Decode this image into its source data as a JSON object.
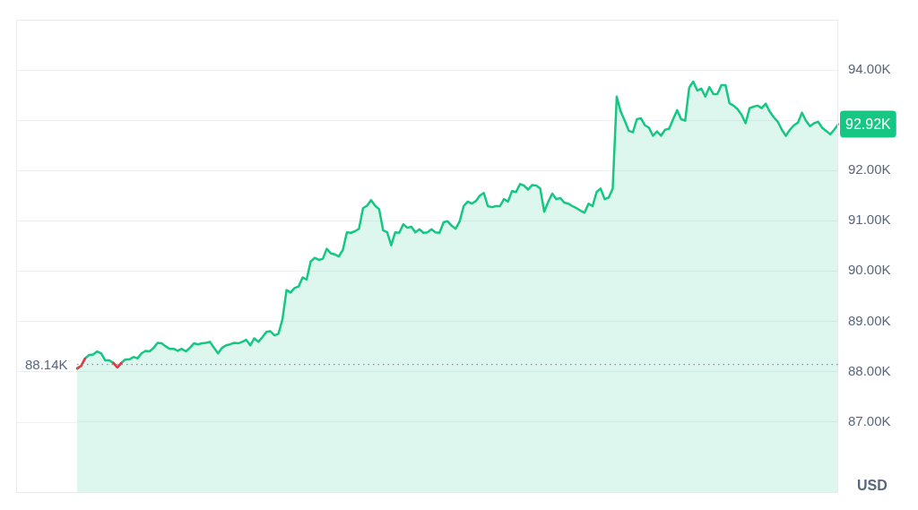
{
  "chart_data": {
    "type": "area",
    "ylabel": "USD",
    "categories": [
      null,
      null,
      null,
      null,
      null,
      null,
      null,
      null,
      null,
      null,
      null,
      null,
      null,
      null,
      null,
      null,
      null,
      null,
      null,
      null,
      null,
      null,
      null,
      null,
      null,
      null,
      null,
      null,
      null,
      null,
      null,
      null,
      null,
      null,
      null,
      null,
      null,
      null,
      null,
      null,
      null,
      null,
      null,
      null,
      null,
      null,
      null,
      null,
      null,
      null,
      null,
      null,
      null,
      null,
      null,
      null,
      null,
      null,
      null,
      null,
      null,
      null,
      null,
      null,
      null,
      null,
      null,
      null,
      null,
      null,
      null,
      null,
      null,
      null,
      null,
      null,
      null,
      null,
      null,
      null,
      null,
      null,
      null,
      null,
      null,
      null,
      null,
      null,
      null,
      null,
      null,
      null,
      null,
      null,
      null,
      null,
      null,
      null,
      null,
      null,
      null,
      null,
      null,
      null,
      null,
      null,
      null,
      null,
      null,
      null,
      null,
      null,
      null,
      null,
      null,
      null,
      null,
      null,
      null,
      null,
      null,
      null,
      null,
      null,
      null,
      null,
      null,
      null,
      null,
      null,
      null,
      null,
      null,
      null,
      null,
      null,
      null,
      null,
      null,
      null,
      null,
      null,
      null,
      null,
      null,
      null,
      null,
      null,
      null,
      null,
      null,
      null,
      null,
      null,
      null,
      null,
      null,
      null,
      null,
      null,
      null,
      null,
      null,
      null,
      null,
      null,
      null,
      null,
      null,
      null,
      null,
      null,
      null,
      null,
      null,
      null,
      null,
      null,
      null,
      null,
      null,
      null,
      null,
      null,
      null,
      null,
      null,
      null,
      null,
      null
    ],
    "series": [
      {
        "color": "#16c784",
        "values": [
          88.06,
          88.11,
          88.26,
          88.33,
          88.34,
          88.4,
          88.36,
          88.22,
          88.22,
          88.17,
          88.08,
          88.17,
          88.24,
          88.24,
          88.29,
          88.26,
          88.36,
          88.41,
          88.4,
          88.47,
          88.57,
          88.56,
          88.5,
          88.45,
          88.45,
          88.41,
          88.45,
          88.4,
          88.47,
          88.56,
          88.54,
          88.56,
          88.57,
          88.59,
          88.47,
          88.36,
          88.47,
          88.52,
          88.54,
          88.57,
          88.56,
          88.59,
          88.63,
          88.52,
          88.66,
          88.59,
          88.68,
          88.79,
          88.8,
          88.72,
          88.75,
          89.04,
          89.62,
          89.57,
          89.66,
          89.69,
          89.87,
          89.83,
          90.19,
          90.26,
          90.22,
          90.24,
          90.44,
          90.35,
          90.33,
          90.29,
          90.42,
          90.77,
          90.76,
          90.79,
          90.84,
          91.25,
          91.3,
          91.41,
          91.3,
          91.23,
          90.81,
          90.77,
          90.51,
          90.77,
          90.76,
          90.93,
          90.86,
          90.88,
          90.77,
          90.83,
          90.76,
          90.77,
          90.83,
          90.77,
          90.76,
          90.97,
          90.99,
          90.9,
          90.84,
          90.99,
          91.29,
          91.38,
          91.34,
          91.39,
          91.5,
          91.55,
          91.29,
          91.27,
          91.29,
          91.29,
          91.43,
          91.38,
          91.59,
          91.57,
          91.73,
          91.7,
          91.62,
          91.71,
          91.7,
          91.64,
          91.18,
          91.38,
          91.54,
          91.43,
          91.45,
          91.36,
          91.34,
          91.29,
          91.25,
          91.2,
          91.16,
          91.34,
          91.29,
          91.57,
          91.64,
          91.43,
          91.46,
          91.64,
          93.47,
          93.17,
          92.99,
          92.79,
          92.76,
          93.02,
          93.04,
          92.9,
          92.85,
          92.69,
          92.78,
          92.69,
          92.81,
          92.83,
          93.02,
          93.2,
          93.02,
          92.99,
          93.65,
          93.77,
          93.59,
          93.63,
          93.47,
          93.66,
          93.52,
          93.52,
          93.7,
          93.7,
          93.34,
          93.29,
          93.22,
          93.11,
          92.94,
          93.24,
          93.27,
          93.29,
          93.24,
          93.33,
          93.17,
          93.06,
          92.97,
          92.81,
          92.69,
          92.81,
          92.9,
          92.95,
          93.15,
          92.99,
          92.88,
          92.94,
          92.97,
          92.85,
          92.79,
          92.72,
          92.81,
          92.92
        ]
      },
      {
        "type": "line",
        "color": "#ea3943",
        "values": [
          88.06,
          88.11,
          88.26,
          null,
          null,
          null,
          null,
          null,
          null,
          88.17,
          88.08,
          88.17,
          null,
          null,
          null,
          null,
          null,
          null,
          null,
          null,
          null,
          null,
          null,
          null,
          null,
          null,
          null,
          null,
          null,
          null,
          null,
          null,
          null,
          null,
          null,
          null,
          null,
          null,
          null,
          null,
          null,
          null,
          null,
          null,
          null,
          null,
          null,
          null,
          null,
          null,
          null,
          null,
          null,
          null,
          null,
          null,
          null,
          null,
          null,
          null,
          null,
          null,
          null,
          null,
          null,
          null,
          null,
          null,
          null,
          null,
          null,
          null,
          null,
          null,
          null,
          null,
          null,
          null,
          null,
          null,
          null,
          null,
          null,
          null,
          null,
          null,
          null,
          null,
          null,
          null,
          null,
          null,
          null,
          null,
          null,
          null,
          null,
          null,
          null,
          null,
          null,
          null,
          null,
          null,
          null,
          null,
          null,
          null,
          null,
          null,
          null,
          null,
          null,
          null,
          null,
          null,
          null,
          null,
          null,
          null,
          null,
          null,
          null,
          null,
          null,
          null,
          null,
          null,
          null,
          null,
          null,
          null,
          null,
          null,
          null,
          null,
          null,
          null,
          null,
          null,
          null,
          null,
          null,
          null,
          null,
          null,
          null,
          null,
          null,
          null,
          null,
          null,
          null,
          null,
          null,
          null,
          null,
          null,
          null,
          null,
          null,
          null,
          null,
          null,
          null,
          null,
          null,
          null,
          null,
          null,
          null,
          null,
          null,
          null,
          null,
          null,
          null,
          null,
          null,
          null,
          null,
          null,
          null,
          null,
          null,
          null,
          null,
          null,
          null,
          null
        ]
      }
    ],
    "ylim": [
      85.6,
      95.0
    ],
    "yticks": [
      {
        "value": 87,
        "label": "87.00K"
      },
      {
        "value": 88,
        "label": "88.00K"
      },
      {
        "value": 89,
        "label": "89.00K"
      },
      {
        "value": 90,
        "label": "90.00K"
      },
      {
        "value": 91,
        "label": "91.00K"
      },
      {
        "value": 92,
        "label": "92.00K"
      },
      {
        "value": 93,
        "label": null
      },
      {
        "value": 94,
        "label": "94.00K"
      }
    ],
    "ref_lines": [
      {
        "axis": "y",
        "value": 88.14,
        "label": "88.14K",
        "color": "#8a919e",
        "line_style": "dotted"
      }
    ],
    "annotations": [
      "92.92K"
    ],
    "grid": "y",
    "tick_labels": "y",
    "marker": "none",
    "line_style": "solid",
    "legend": false
  }
}
